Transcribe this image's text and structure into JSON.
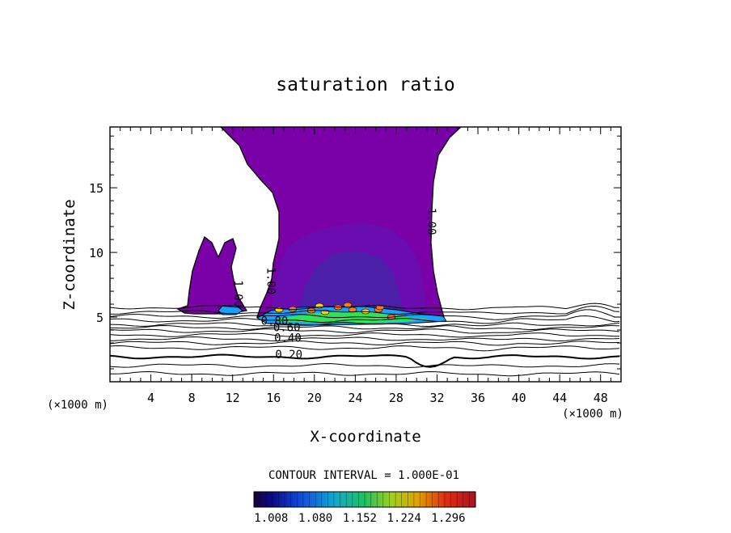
{
  "chart_data": {
    "type": "contour",
    "title": "saturation ratio",
    "xlabel": "X-coordinate",
    "ylabel": "Z-coordinate",
    "x_unit_left": "(×1000 m)",
    "x_unit_right": "(×1000 m)",
    "xlim": [
      0,
      50
    ],
    "ylim": [
      0,
      19.7
    ],
    "x_ticks": [
      4,
      8,
      12,
      16,
      20,
      24,
      28,
      32,
      36,
      40,
      44,
      48
    ],
    "y_ticks": [
      5,
      10,
      15
    ],
    "contour_interval_text": "CONTOUR INTERVAL = 1.000E-01",
    "contour_labels": [
      {
        "text": "1.00",
        "x": 31.1,
        "y": 12.4
      },
      {
        "text": "1.00",
        "x": 15.4,
        "y": 7.8
      },
      {
        "text": "1.00",
        "x": 12.2,
        "y": 6.8
      },
      {
        "text": "0.80",
        "x": 16.1,
        "y": 4.4
      },
      {
        "text": "0.60",
        "x": 17.3,
        "y": 3.9
      },
      {
        "text": "0.40",
        "x": 17.4,
        "y": 3.1
      },
      {
        "text": "0.20",
        "x": 17.5,
        "y": 1.8
      }
    ],
    "colorbar": {
      "tick_labels": [
        "1.008",
        "1.080",
        "1.152",
        "1.224",
        "1.296"
      ],
      "range": [
        0.98,
        1.34
      ]
    },
    "colors": {
      "supersaturated_fill": "#7a00a8",
      "inner_fill": "#6a0cb0",
      "core_fill": "#4b1fa8",
      "high_band": "#1aa0ff",
      "peak_band": "#32e05a",
      "max_spots": "#ffd000"
    }
  }
}
